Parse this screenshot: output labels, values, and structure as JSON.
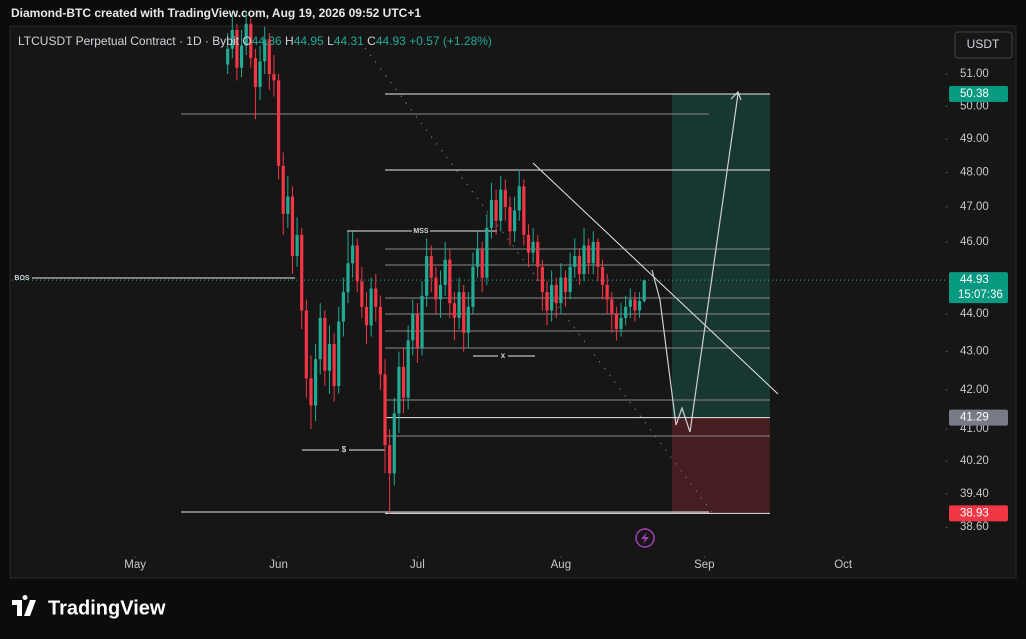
{
  "header": "Diamond-BTC created with TradingView.com, Aug 19, 2026 09:52 UTC+1",
  "currency_button": "USDT",
  "logo": "TradingView",
  "chart_data": {
    "type": "candlestick",
    "symbol": "LTCUSDT Perpetual Contract · 1D · Bybit",
    "ohlc_labels": [
      "O",
      "H",
      "L",
      "C"
    ],
    "change": "+0.57 (+1.28%)",
    "log_scale": true,
    "up_color": "#22ab94",
    "down_color": "#f23645",
    "xlim": [
      -26.6,
      175
    ],
    "xticks": [
      {
        "value": 0,
        "label": "May"
      },
      {
        "value": 31,
        "label": "Jun"
      },
      {
        "value": 61,
        "label": "Jul"
      },
      {
        "value": 92,
        "label": "Aug"
      },
      {
        "value": 123,
        "label": "Sep"
      },
      {
        "value": 153,
        "label": "Oct"
      }
    ],
    "ylim": [
      38.18,
      52.4
    ],
    "yticks": [
      {
        "value": 51,
        "label": "51.00"
      },
      {
        "value": 50,
        "label": "50.00"
      },
      {
        "value": 49,
        "label": "49.00"
      },
      {
        "value": 48,
        "label": "48.00"
      },
      {
        "value": 47,
        "label": "47.00"
      },
      {
        "value": 46,
        "label": "46.00"
      },
      {
        "value": 44,
        "label": "44.00"
      },
      {
        "value": 43,
        "label": "43.00"
      },
      {
        "value": 42,
        "label": "42.00"
      },
      {
        "value": 41,
        "label": "41.00"
      },
      {
        "value": 40.2,
        "label": "40.20"
      },
      {
        "value": 39.4,
        "label": "39.40"
      },
      {
        "value": 38.6,
        "label": "38.60"
      }
    ],
    "x": [
      20,
      21,
      22,
      23,
      24,
      25,
      26,
      27,
      28,
      29,
      30,
      31,
      32,
      33,
      34,
      35,
      36,
      37,
      38,
      39,
      40,
      41,
      42,
      43,
      44,
      45,
      46,
      47,
      48,
      49,
      50,
      51,
      52,
      53,
      54,
      55,
      56,
      57,
      58,
      59,
      60,
      61,
      62,
      63,
      64,
      65,
      66,
      67,
      68,
      69,
      70,
      71,
      72,
      73,
      74,
      75,
      76,
      77,
      78,
      79,
      80,
      81,
      82,
      83,
      84,
      85,
      86,
      87,
      88,
      89,
      90,
      91,
      92,
      93,
      94,
      95,
      96,
      97,
      98,
      99,
      100,
      101,
      102,
      103,
      104,
      105,
      106,
      107,
      108,
      109,
      110
    ],
    "open": [
      51.3,
      51.8,
      52.4,
      51.2,
      51.9,
      52.6,
      51.5,
      50.6,
      51.4,
      52.1,
      51.0,
      50.8,
      48.2,
      46.8,
      47.3,
      45.6,
      46.2,
      44.1,
      42.3,
      41.6,
      42.8,
      43.9,
      42.5,
      43.2,
      42.1,
      43.8,
      44.6,
      45.4,
      45.9,
      44.9,
      44.2,
      43.7,
      44.7,
      44.2,
      42.4,
      40.6,
      39.9,
      41.4,
      42.6,
      41.8,
      43.3,
      44.0,
      43.1,
      44.5,
      45.6,
      45.0,
      44.4,
      44.8,
      45.5,
      44.3,
      43.9,
      44.6,
      43.5,
      44.2,
      45.3,
      45.8,
      45.0,
      46.4,
      47.2,
      46.6,
      47.5,
      47.0,
      46.3,
      46.9,
      47.6,
      46.2,
      45.7,
      46.0,
      45.3,
      44.6,
      44.1,
      44.8,
      44.3,
      45.0,
      44.6,
      45.3,
      45.6,
      45.1,
      45.9,
      45.4,
      46.0,
      45.3,
      44.8,
      44.4,
      44.0,
      43.6,
      43.9,
      44.2,
      44.4,
      44.1,
      44.36
    ],
    "high": [
      52.3,
      52.9,
      52.6,
      52.4,
      53.0,
      52.8,
      51.8,
      51.9,
      52.5,
      52.3,
      51.6,
      51.0,
      48.6,
      47.9,
      47.6,
      46.7,
      46.4,
      44.4,
      42.9,
      43.2,
      44.3,
      44.1,
      43.7,
      43.5,
      44.2,
      45.0,
      46.3,
      46.3,
      46.1,
      45.3,
      44.6,
      45.0,
      45.1,
      44.5,
      42.8,
      41.0,
      41.8,
      43.0,
      43.1,
      43.7,
      44.4,
      44.3,
      44.9,
      46.1,
      45.9,
      45.3,
      45.2,
      46.0,
      45.8,
      44.6,
      45.0,
      44.8,
      44.6,
      45.7,
      46.3,
      46.0,
      46.8,
      47.7,
      47.5,
      47.9,
      47.8,
      47.3,
      47.3,
      48.1,
      47.8,
      46.5,
      46.4,
      46.2,
      45.5,
      44.9,
      45.2,
      45.0,
      45.4,
      45.2,
      45.7,
      46.1,
      45.8,
      46.4,
      46.1,
      46.3,
      46.1,
      45.5,
      45.1,
      44.6,
      44.2,
      44.3,
      44.5,
      44.7,
      44.6,
      44.6,
      44.95
    ],
    "low": [
      51.0,
      51.5,
      50.8,
      50.9,
      51.6,
      51.2,
      49.6,
      50.2,
      51.0,
      50.5,
      50.3,
      47.8,
      46.2,
      46.4,
      45.1,
      45.3,
      43.6,
      41.8,
      41.0,
      41.2,
      42.4,
      42.1,
      41.9,
      41.7,
      41.9,
      43.4,
      44.3,
      45.0,
      44.6,
      43.9,
      43.2,
      43.4,
      43.8,
      42.0,
      39.9,
      38.93,
      39.6,
      40.9,
      41.4,
      41.5,
      42.9,
      42.7,
      42.9,
      44.2,
      44.6,
      44.0,
      43.9,
      44.5,
      43.9,
      43.3,
      43.6,
      43.0,
      43.1,
      44.0,
      45.0,
      44.6,
      44.8,
      46.1,
      46.2,
      46.3,
      46.6,
      45.9,
      46.0,
      46.6,
      45.9,
      45.3,
      45.4,
      44.9,
      44.1,
      43.7,
      43.8,
      43.9,
      44.0,
      44.2,
      44.4,
      45.0,
      44.8,
      44.9,
      45.1,
      45.1,
      44.9,
      44.4,
      44.0,
      43.5,
      43.3,
      43.4,
      43.7,
      43.9,
      43.8,
      43.9,
      44.31
    ],
    "close": [
      51.8,
      52.4,
      51.2,
      51.9,
      52.6,
      51.5,
      50.6,
      51.4,
      52.1,
      51.0,
      50.8,
      48.2,
      46.8,
      47.3,
      45.6,
      46.2,
      44.1,
      42.3,
      41.6,
      42.8,
      43.9,
      42.5,
      43.2,
      42.1,
      43.8,
      44.6,
      45.4,
      45.9,
      44.9,
      44.2,
      43.7,
      44.7,
      44.2,
      42.4,
      40.6,
      39.9,
      41.4,
      42.6,
      41.8,
      43.3,
      44.0,
      43.1,
      44.5,
      45.6,
      45.0,
      44.4,
      44.8,
      45.5,
      44.3,
      43.9,
      44.6,
      43.5,
      44.2,
      45.3,
      45.8,
      45.0,
      46.4,
      47.2,
      46.6,
      47.5,
      47.0,
      46.3,
      46.9,
      47.6,
      46.2,
      45.7,
      46.0,
      45.3,
      44.6,
      44.1,
      44.8,
      44.3,
      45.0,
      44.6,
      45.3,
      45.6,
      45.1,
      45.9,
      45.4,
      46.0,
      45.3,
      44.8,
      44.4,
      44.0,
      43.6,
      43.9,
      44.2,
      44.4,
      44.1,
      44.36,
      44.93
    ],
    "last_price": 44.93,
    "countdown": "15:07:36",
    "position": {
      "target": 50.38,
      "entry": 41.29,
      "stop": 38.93
    },
    "annotations": [
      "BOS",
      "MSS",
      "x",
      "$"
    ]
  }
}
